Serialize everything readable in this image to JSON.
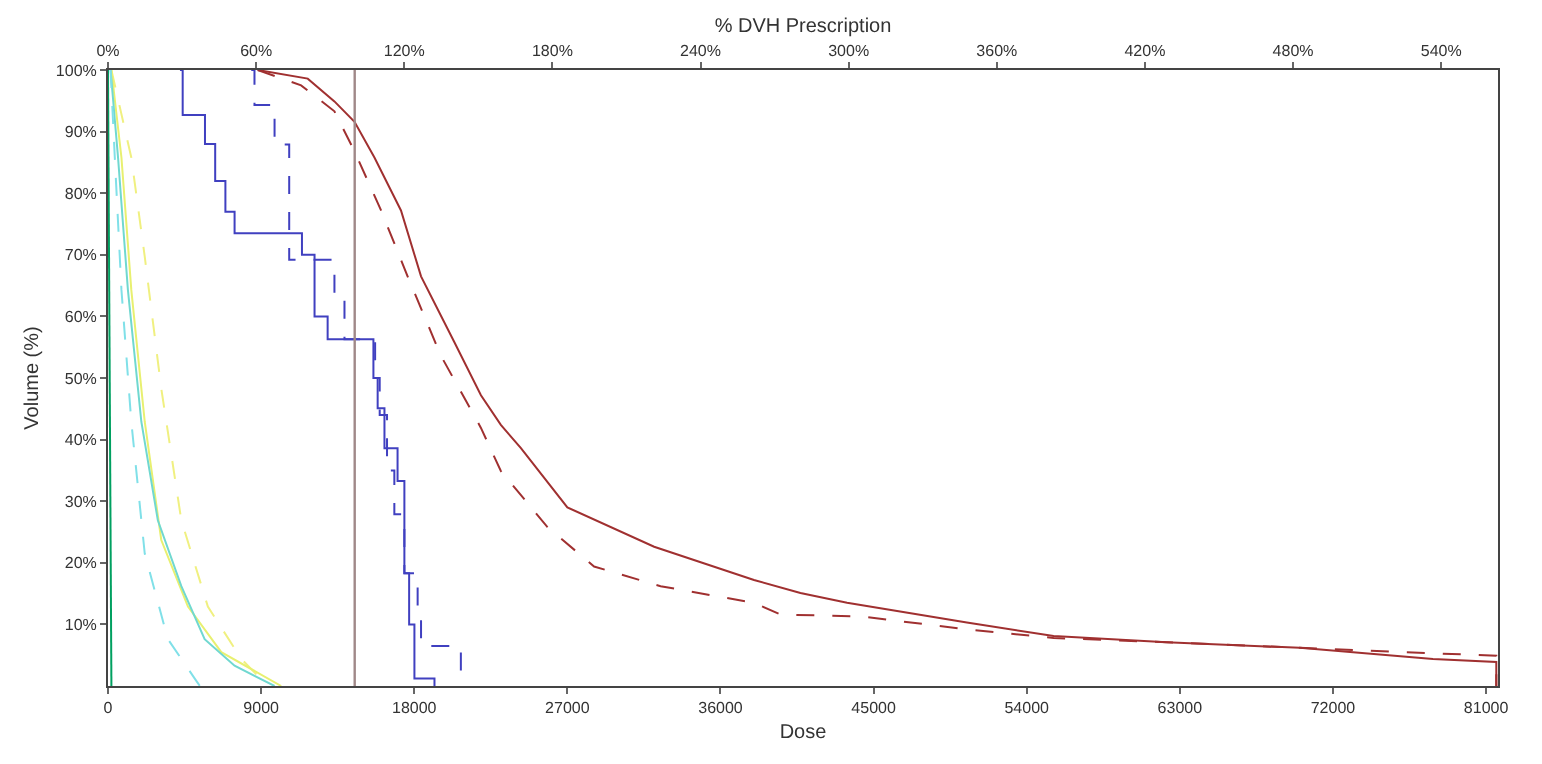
{
  "chart_data": {
    "type": "line",
    "xlabel": "Dose",
    "ylabel": "Volume (%)",
    "x2label": "% DVH Prescription",
    "xlim": [
      0,
      81700
    ],
    "xticks": [
      0,
      9000,
      18000,
      27000,
      36000,
      45000,
      54000,
      63000,
      72000,
      81000
    ],
    "x2lim": [
      0,
      563
    ],
    "x2ticks": [
      {
        "value": 0,
        "label": "0%"
      },
      {
        "value": 60,
        "label": "60%"
      },
      {
        "value": 120,
        "label": "120%"
      },
      {
        "value": 180,
        "label": "180%"
      },
      {
        "value": 240,
        "label": "240%"
      },
      {
        "value": 300,
        "label": "300%"
      },
      {
        "value": 360,
        "label": "360%"
      },
      {
        "value": 420,
        "label": "420%"
      },
      {
        "value": 480,
        "label": "480%"
      },
      {
        "value": 540,
        "label": "540%"
      }
    ],
    "ylim": [
      0,
      100
    ],
    "yticks": [
      {
        "value": 10,
        "label": "10%"
      },
      {
        "value": 20,
        "label": "20%"
      },
      {
        "value": 30,
        "label": "30%"
      },
      {
        "value": 40,
        "label": "40%"
      },
      {
        "value": 50,
        "label": "50%"
      },
      {
        "value": 60,
        "label": "60%"
      },
      {
        "value": 70,
        "label": "70%"
      },
      {
        "value": 80,
        "label": "80%"
      },
      {
        "value": 90,
        "label": "90%"
      },
      {
        "value": 100,
        "label": "100%"
      }
    ],
    "ref_lines": [
      {
        "axis": "x",
        "value": 14500,
        "color": "#a08888"
      }
    ],
    "series": [
      {
        "color": "#a03030",
        "line_style": "solid",
        "x": [
          8800,
          11740,
          13310,
          14490,
          15660,
          17220,
          18400,
          20360,
          21920,
          23090,
          24270,
          27000,
          32100,
          37970,
          40700,
          43440,
          50480,
          55580,
          62220,
          70050,
          77880,
          81600,
          81600
        ],
        "values": [
          100,
          98.6,
          94.9,
          91.6,
          85.8,
          77.2,
          66.5,
          55.8,
          47.2,
          42.4,
          38.6,
          29,
          22.6,
          17.2,
          15.1,
          13.5,
          10.3,
          8.1,
          7.1,
          6.2,
          4.4,
          3.9,
          0
        ]
      },
      {
        "color": "#a03030",
        "line_style": "dashed",
        "x": [
          8800,
          11350,
          13310,
          14490,
          16050,
          17610,
          19570,
          21920,
          23090,
          25830,
          28570,
          32480,
          37970,
          39530,
          44230,
          50480,
          55580,
          62220,
          70050,
          81600,
          81600
        ],
        "values": [
          100,
          97.5,
          93.3,
          86.8,
          77.2,
          66.5,
          53.6,
          41.9,
          34.9,
          25.8,
          19.4,
          16.2,
          13.5,
          11.6,
          11.3,
          9.2,
          7.8,
          7.1,
          6.2,
          4.9,
          0
        ]
      },
      {
        "type": "step",
        "color": "#4040c0",
        "line_style": "solid",
        "x": [
          4230,
          4390,
          5700,
          6300,
          6900,
          7440,
          10960,
          11400,
          12140,
          12910,
          15460,
          15600,
          15850,
          16250,
          17020,
          17420,
          17700,
          18010,
          19190
        ],
        "values": [
          100,
          92.7,
          88,
          82,
          77,
          73.5,
          73.5,
          70,
          60,
          56.3,
          56.3,
          50,
          45.1,
          38.6,
          33.3,
          18.3,
          10,
          1.2,
          0
        ]
      },
      {
        "type": "step",
        "color": "#4040c0",
        "line_style": "dashed",
        "x": [
          8420,
          8610,
          9790,
          10650,
          13310,
          13900,
          15700,
          15970,
          16400,
          16830,
          17420,
          18200,
          18400,
          20740
        ],
        "values": [
          100,
          94.3,
          87.9,
          69.2,
          62.7,
          56.3,
          50,
          44,
          35,
          27.9,
          18.3,
          12.9,
          6.5,
          0
        ]
      },
      {
        "color": "#f0f080",
        "line_style": "dashed",
        "x": [
          200,
          1370,
          2160,
          3130,
          4310,
          5870,
          7830,
          9390
        ],
        "values": [
          100,
          85.8,
          69.7,
          48.3,
          26.9,
          12.9,
          4.4,
          0
        ]
      },
      {
        "color": "#e8f070",
        "line_style": "solid",
        "x": [
          200,
          790,
          1370,
          2160,
          3130,
          4700,
          6660,
          10180
        ],
        "values": [
          100,
          85.8,
          64.3,
          42.9,
          23.7,
          12.9,
          5.5,
          0
        ]
      },
      {
        "color": "#70d8d0",
        "line_style": "solid",
        "x": [
          150,
          590,
          1170,
          1960,
          2930,
          4310,
          5680,
          7440,
          9790
        ],
        "values": [
          100,
          85.8,
          64.3,
          42.9,
          26.9,
          16.2,
          7.6,
          3.3,
          0
        ]
      },
      {
        "color": "#80e0e8",
        "line_style": "dashed",
        "x": [
          150,
          400,
          790,
          1370,
          2160,
          3520,
          5100,
          5400
        ],
        "values": [
          100,
          85.8,
          64.3,
          42.9,
          21.5,
          7.6,
          1.2,
          0
        ]
      },
      {
        "color": "#00a060",
        "line_style": "solid",
        "x": [
          0,
          80,
          200
        ],
        "values": [
          100,
          60,
          0
        ]
      }
    ]
  }
}
